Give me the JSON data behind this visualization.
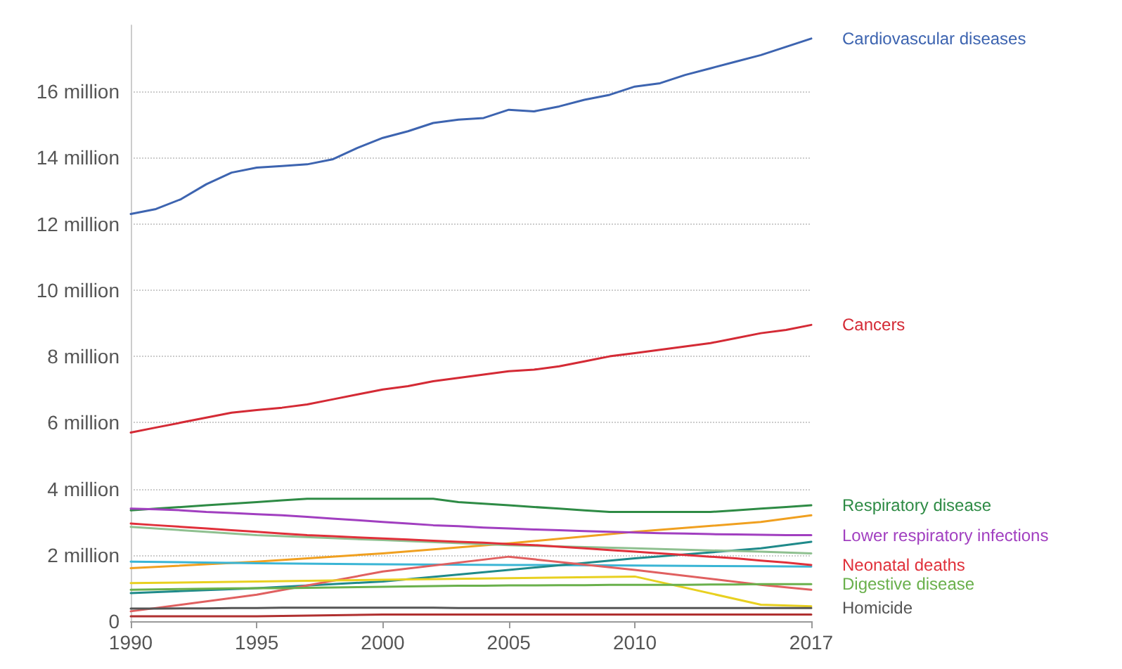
{
  "chart_data": {
    "type": "line",
    "x": [
      1990,
      1991,
      1992,
      1993,
      1994,
      1995,
      1996,
      1997,
      1998,
      1999,
      2000,
      2001,
      2002,
      2003,
      2004,
      2005,
      2006,
      2007,
      2008,
      2009,
      2010,
      2011,
      2012,
      2013,
      2014,
      2015,
      2016,
      2017
    ],
    "xlim": [
      1990,
      2017
    ],
    "xticks": [
      1990,
      1995,
      2000,
      2005,
      2010,
      2017
    ],
    "ylim": [
      0,
      18
    ],
    "yticks": [
      0,
      {
        "value": 2,
        "label": "2 million"
      },
      {
        "value": 4,
        "label": "4 million"
      },
      {
        "value": 6,
        "label": "6 million"
      },
      {
        "value": 8,
        "label": "8 million"
      },
      {
        "value": 10,
        "label": "10 million"
      },
      {
        "value": 12,
        "label": "12 million"
      },
      {
        "value": 14,
        "label": "14 million"
      },
      {
        "value": 16,
        "label": "16 million"
      }
    ],
    "grid": "y",
    "legend": false,
    "marker": "none",
    "line_style": "solid",
    "series": [
      {
        "name": "Cardiovascular diseases",
        "color": "#3d64b0",
        "values": [
          12.3,
          12.45,
          12.75,
          13.2,
          13.55,
          13.7,
          13.75,
          13.8,
          13.95,
          14.3,
          14.6,
          14.8,
          15.05,
          15.15,
          15.2,
          15.45,
          15.4,
          15.55,
          15.75,
          15.9,
          16.15,
          16.25,
          16.5,
          16.7,
          16.9,
          17.1,
          17.35,
          17.6
        ]
      },
      {
        "name": "Cancers",
        "color": "#d42a35",
        "values": [
          5.7,
          5.85,
          6.0,
          6.15,
          6.3,
          6.38,
          6.45,
          6.55,
          6.7,
          6.85,
          7.0,
          7.1,
          7.25,
          7.35,
          7.45,
          7.55,
          7.6,
          7.7,
          7.85,
          8.0,
          8.1,
          8.2,
          8.3,
          8.4,
          8.55,
          8.7,
          8.8,
          8.95
        ]
      },
      {
        "name": "Respiratory disease",
        "color": "#2e8b45",
        "values": [
          3.35,
          3.4,
          3.45,
          3.5,
          3.55,
          3.6,
          3.65,
          3.7,
          3.7,
          3.7,
          3.7,
          3.7,
          3.7,
          3.6,
          3.55,
          3.5,
          3.45,
          3.4,
          3.35,
          3.3,
          3.3,
          3.3,
          3.3,
          3.3,
          3.35,
          3.4,
          3.45,
          3.5
        ]
      },
      {
        "name": "Lower respiratory infections",
        "color": "#a13fc0",
        "values": [
          3.4,
          3.38,
          3.35,
          3.3,
          3.27,
          3.23,
          3.2,
          3.15,
          3.1,
          3.05,
          3.0,
          2.95,
          2.9,
          2.87,
          2.83,
          2.8,
          2.77,
          2.75,
          2.72,
          2.7,
          2.68,
          2.66,
          2.65,
          2.63,
          2.62,
          2.61,
          2.6,
          2.6
        ]
      },
      {
        "name": "Neonatal deaths",
        "color": "#e0303a",
        "values": [
          2.95,
          2.9,
          2.85,
          2.8,
          2.75,
          2.7,
          2.65,
          2.6,
          2.57,
          2.53,
          2.5,
          2.47,
          2.43,
          2.4,
          2.37,
          2.33,
          2.3,
          2.25,
          2.2,
          2.15,
          2.1,
          2.05,
          2.0,
          1.95,
          1.9,
          1.83,
          1.77,
          1.7
        ]
      },
      {
        "name": "Digestive disease",
        "color": "#6ab04c",
        "values": [
          0.95,
          0.96,
          0.97,
          0.98,
          0.99,
          1.0,
          1.0,
          1.01,
          1.02,
          1.03,
          1.04,
          1.05,
          1.06,
          1.07,
          1.07,
          1.08,
          1.08,
          1.09,
          1.09,
          1.1,
          1.1,
          1.1,
          1.1,
          1.11,
          1.11,
          1.12,
          1.12,
          1.12
        ]
      },
      {
        "name": "Homicide",
        "color": "#555555",
        "values": [
          0.38,
          0.38,
          0.39,
          0.39,
          0.4,
          0.4,
          0.41,
          0.41,
          0.41,
          0.41,
          0.41,
          0.41,
          0.41,
          0.4,
          0.4,
          0.4,
          0.4,
          0.4,
          0.4,
          0.4,
          0.4,
          0.4,
          0.4,
          0.4,
          0.4,
          0.4,
          0.4,
          0.4
        ]
      },
      {
        "color": "#f0a020",
        "x": [
          1990,
          1995,
          2000,
          2005,
          2010,
          2015,
          2017
        ],
        "values": [
          1.6,
          1.8,
          2.05,
          2.35,
          2.7,
          3.0,
          3.2
        ]
      },
      {
        "color": "#3ab5d5",
        "x": [
          1990,
          1995,
          2000,
          2005,
          2010,
          2015,
          2017
        ],
        "values": [
          1.8,
          1.75,
          1.72,
          1.7,
          1.68,
          1.66,
          1.65
        ]
      },
      {
        "color": "#1f8a8a",
        "x": [
          1990,
          1995,
          2000,
          2005,
          2010,
          2015,
          2017
        ],
        "values": [
          0.85,
          1.0,
          1.2,
          1.55,
          1.9,
          2.2,
          2.4
        ]
      },
      {
        "color": "#e06060",
        "x": [
          1990,
          1995,
          2000,
          2005,
          2010,
          2015,
          2017
        ],
        "values": [
          0.3,
          0.8,
          1.5,
          1.95,
          1.55,
          1.1,
          0.95
        ]
      },
      {
        "color": "#e8d020",
        "x": [
          1990,
          1995,
          2000,
          2005,
          2010,
          2015,
          2017
        ],
        "values": [
          1.15,
          1.2,
          1.25,
          1.3,
          1.35,
          0.5,
          0.45
        ]
      },
      {
        "color": "#8fc090",
        "x": [
          1990,
          1995,
          2000,
          2005,
          2010,
          2015,
          2017
        ],
        "values": [
          2.85,
          2.6,
          2.45,
          2.3,
          2.2,
          2.1,
          2.05
        ]
      },
      {
        "color": "#b03030",
        "x": [
          1990,
          1995,
          2000,
          2005,
          2010,
          2015,
          2017
        ],
        "values": [
          0.15,
          0.15,
          0.2,
          0.2,
          0.2,
          0.2,
          0.2
        ]
      }
    ]
  }
}
